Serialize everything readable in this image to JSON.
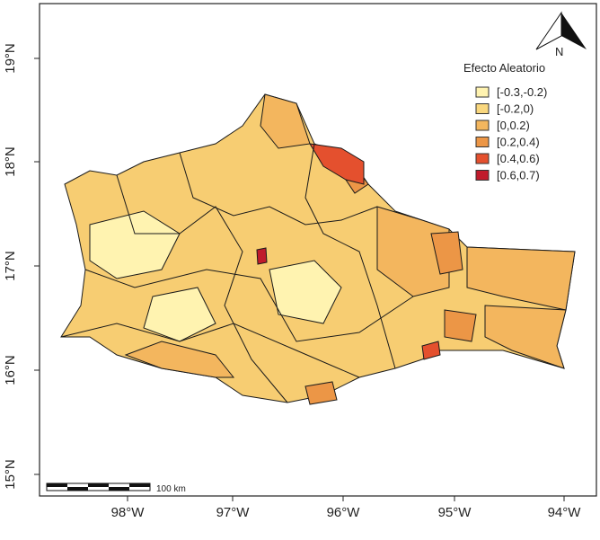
{
  "map": {
    "x_tick_labels": [
      "98°W",
      "97°W",
      "96°W",
      "95°W",
      "94°W"
    ],
    "y_tick_labels": [
      "19°N",
      "18°N",
      "17°N",
      "16°N",
      "15°N"
    ],
    "legend": {
      "title": "Efecto Aleatorio",
      "items": [
        {
          "label": "[-0.3,-0.2)",
          "color": "#fff3b0"
        },
        {
          "label": "[-0.2,0)",
          "color": "#f9d77e"
        },
        {
          "label": "[0,0.2)",
          "color": "#f3b65e"
        },
        {
          "label": "[0.2,0.4)",
          "color": "#ec9646"
        },
        {
          "label": "[0.4,0.6)",
          "color": "#e4502e"
        },
        {
          "label": "[0.6,0.7)",
          "color": "#c01b2c"
        }
      ]
    },
    "scale_bar_label": "100 km",
    "north_label": "N"
  }
}
